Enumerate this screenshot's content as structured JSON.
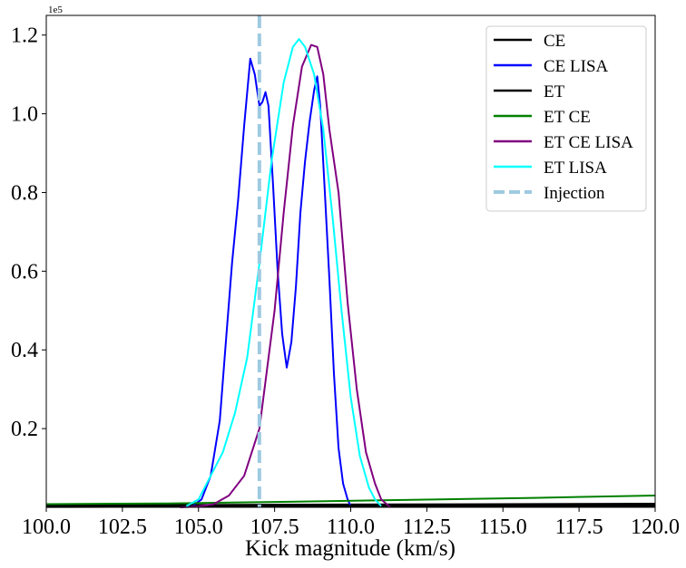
{
  "chart_data": {
    "type": "line",
    "xlabel": "Kick magnitude (km/s)",
    "ylabel": "",
    "y_offset_label": "1e5",
    "xlim": [
      100,
      120
    ],
    "ylim": [
      0,
      1.25
    ],
    "xticks": [
      "100.0",
      "102.5",
      "105.0",
      "107.5",
      "110.0",
      "112.5",
      "115.0",
      "117.5",
      "120.0"
    ],
    "yticks": [
      "0.2",
      "0.4",
      "0.6",
      "0.8",
      "1.0",
      "1.2"
    ],
    "grid": false,
    "legend_position": "top-right",
    "injection": {
      "name": "Injection",
      "x": 107.0,
      "color": "#9ecae1"
    },
    "series": [
      {
        "name": "CE",
        "color": "#000000",
        "x": [
          100,
          120
        ],
        "y": [
          0.004,
          0.008
        ]
      },
      {
        "name": "CE LISA",
        "color": "#0000ff",
        "x": [
          104.8,
          105.1,
          105.4,
          105.7,
          105.9,
          106.1,
          106.3,
          106.5,
          106.7,
          106.85,
          107.0,
          107.1,
          107.2,
          107.3,
          107.45,
          107.6,
          107.75,
          107.9,
          108.05,
          108.2,
          108.35,
          108.5,
          108.65,
          108.8,
          108.9,
          109.0,
          109.15,
          109.3,
          109.45,
          109.6,
          109.75,
          109.9,
          110.0
        ],
        "y": [
          0.003,
          0.02,
          0.08,
          0.22,
          0.42,
          0.62,
          0.78,
          0.97,
          1.14,
          1.1,
          1.02,
          1.03,
          1.055,
          1.02,
          0.82,
          0.6,
          0.44,
          0.355,
          0.42,
          0.56,
          0.75,
          0.88,
          0.98,
          1.06,
          1.095,
          1.02,
          0.8,
          0.58,
          0.34,
          0.15,
          0.06,
          0.02,
          0.003
        ]
      },
      {
        "name": "ET",
        "color": "#000000",
        "x": [
          100,
          120
        ],
        "y": [
          0.002,
          0.004
        ]
      },
      {
        "name": "ET CE",
        "color": "#008000",
        "x": [
          100,
          104,
          108,
          112,
          116,
          120
        ],
        "y": [
          0.008,
          0.01,
          0.014,
          0.019,
          0.024,
          0.03
        ]
      },
      {
        "name": "ET CE LISA",
        "color": "#800080",
        "x": [
          104.4,
          105.0,
          105.5,
          106.0,
          106.5,
          107.0,
          107.5,
          107.8,
          108.1,
          108.4,
          108.7,
          108.9,
          109.1,
          109.3,
          109.6,
          109.9,
          110.2,
          110.5,
          110.8,
          111.0,
          111.3
        ],
        "y": [
          0.0,
          0.002,
          0.008,
          0.03,
          0.08,
          0.2,
          0.5,
          0.75,
          0.97,
          1.12,
          1.175,
          1.17,
          1.1,
          0.96,
          0.8,
          0.52,
          0.3,
          0.14,
          0.06,
          0.02,
          0.0
        ]
      },
      {
        "name": "ET LISA",
        "color": "#00ffff",
        "x": [
          104.6,
          105.0,
          105.4,
          105.8,
          106.2,
          106.6,
          107.0,
          107.4,
          107.8,
          108.1,
          108.3,
          108.5,
          108.8,
          109.1,
          109.4,
          109.7,
          110.0,
          110.3,
          110.6,
          110.8,
          111.0
        ],
        "y": [
          0.003,
          0.02,
          0.08,
          0.14,
          0.24,
          0.38,
          0.62,
          0.88,
          1.08,
          1.17,
          1.19,
          1.17,
          1.1,
          0.96,
          0.74,
          0.5,
          0.28,
          0.13,
          0.05,
          0.02,
          0.003
        ]
      }
    ]
  }
}
